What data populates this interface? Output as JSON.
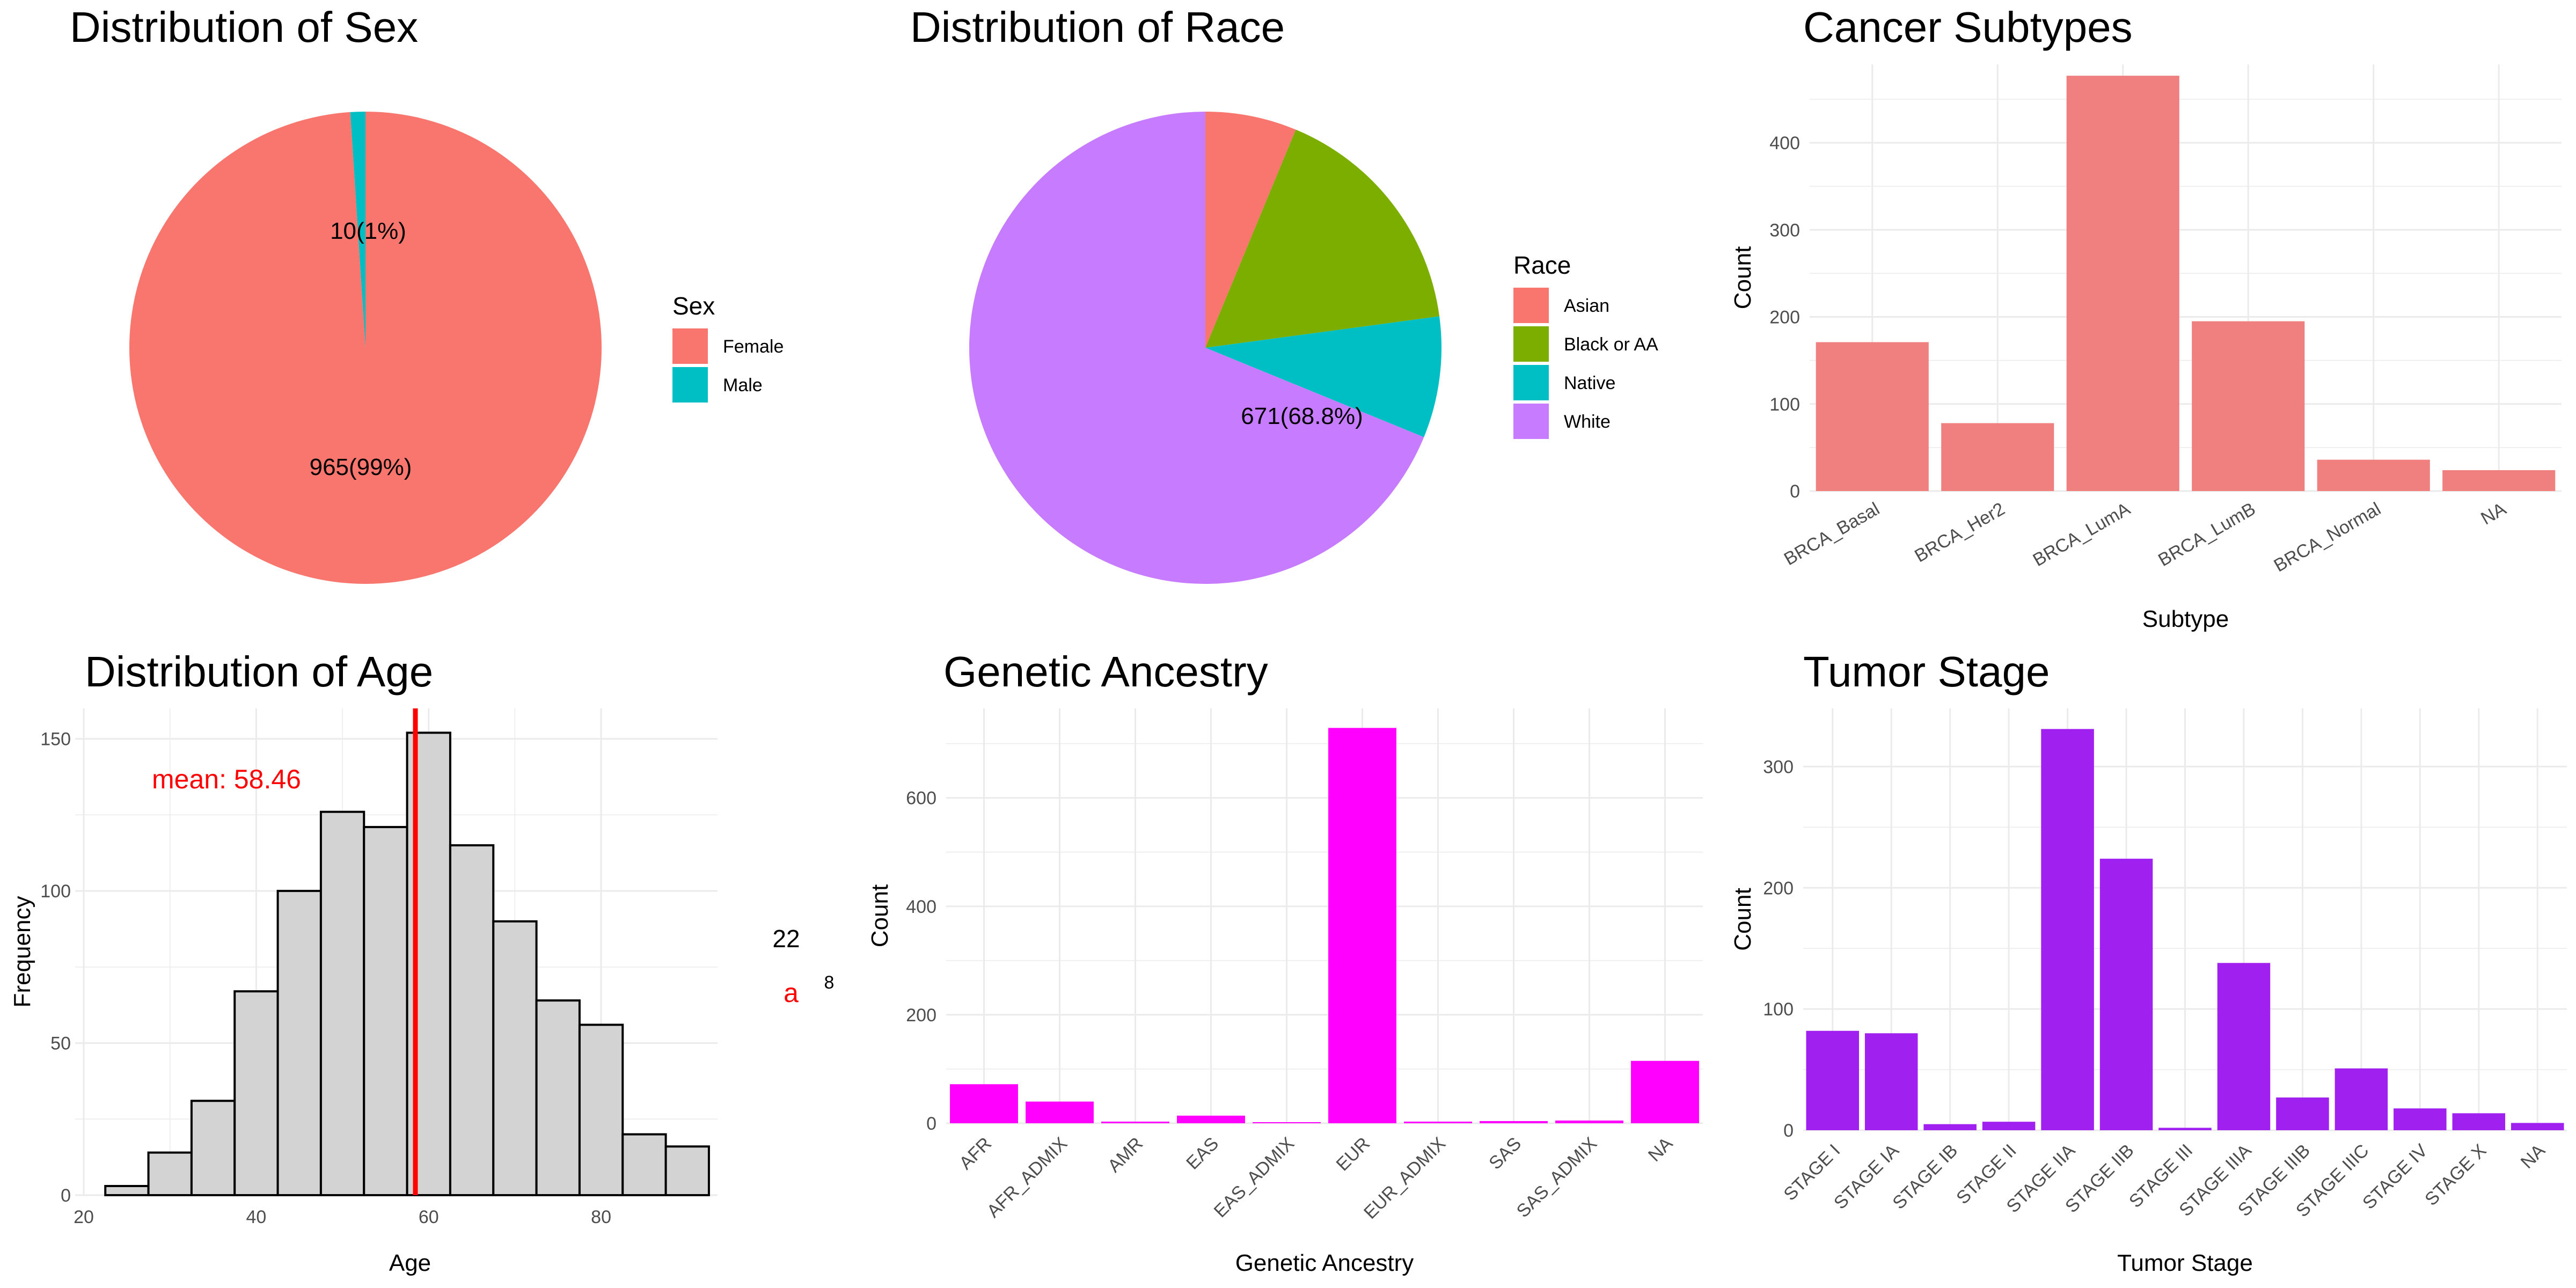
{
  "colors": {
    "female": "#F8766D",
    "male": "#00BFC4",
    "asian": "#F8766D",
    "black": "#7CAE00",
    "native": "#00BFC4",
    "white": "#C77CFF",
    "subtype_bar": "#F08080",
    "ancestry_bar": "#FF00FF",
    "stage_bar": "#A020F0",
    "hist_fill": "#D3D3D3",
    "mean_line": "#FF0000",
    "grid": "#EBEBEB",
    "tick_text": "#4D4D4D"
  },
  "chart_data": [
    {
      "id": "sex",
      "type": "pie",
      "title": "Distribution of Sex",
      "legend_title": "Sex",
      "legend_position": "right",
      "slices": [
        {
          "name": "Female",
          "value": 965,
          "label": "965(99%)"
        },
        {
          "name": "Male",
          "value": 10,
          "label": "10(1%)"
        }
      ]
    },
    {
      "id": "race",
      "type": "pie",
      "title": "Distribution of Race",
      "legend_title": "Race",
      "legend_position": "right",
      "slices": [
        {
          "name": "Asian",
          "value": 61,
          "label": ""
        },
        {
          "name": "Black or AA",
          "value": 162,
          "label": ""
        },
        {
          "name": "Native",
          "value": 81,
          "label": ""
        },
        {
          "name": "White",
          "value": 671,
          "label": "671(68.8%)"
        }
      ]
    },
    {
      "id": "subtype",
      "type": "bar",
      "title": "Cancer Subtypes",
      "xlabel": "Subtype",
      "ylabel": "Count",
      "categories": [
        "BRCA_Basal",
        "BRCA_Her2",
        "BRCA_LumA",
        "BRCA_LumB",
        "BRCA_Normal",
        "NA"
      ],
      "values": [
        171,
        78,
        477,
        195,
        36,
        24
      ],
      "ylim": [
        0,
        490
      ],
      "yticks": [
        0,
        100,
        200,
        300,
        400
      ],
      "grid": true
    },
    {
      "id": "age",
      "type": "histogram",
      "title": "Distribution of Age",
      "xlabel": "Age",
      "ylabel": "Frequency",
      "bin_edges": [
        22.5,
        27.5,
        32.5,
        37.5,
        42.5,
        47.5,
        52.5,
        57.5,
        62.5,
        67.5,
        72.5,
        77.5,
        82.5,
        87.5,
        92.5
      ],
      "values": [
        3,
        14,
        31,
        67,
        100,
        126,
        121,
        152,
        115,
        90,
        64,
        56,
        20,
        16
      ],
      "xlim": [
        19,
        93.5
      ],
      "ylim": [
        0,
        160
      ],
      "xticks": [
        20,
        40,
        60,
        80
      ],
      "yticks": [
        0,
        50,
        100,
        150
      ],
      "mean": 58.46,
      "mean_label": "mean:  58.46",
      "grid": true
    },
    {
      "id": "ancestry",
      "type": "bar",
      "title": "Genetic Ancestry",
      "xlabel": "Genetic Ancestry",
      "ylabel": "Count",
      "categories": [
        "AFR",
        "AFR_ADMIX",
        "AMR",
        "EAS",
        "EAS_ADMIX",
        "EUR",
        "EUR_ADMIX",
        "SAS",
        "SAS_ADMIX",
        "NA"
      ],
      "values": [
        72,
        40,
        3,
        14,
        2,
        729,
        3,
        4,
        5,
        115
      ],
      "ylim": [
        0,
        765
      ],
      "yticks": [
        0,
        200,
        400,
        600
      ],
      "grid": true
    },
    {
      "id": "stage",
      "type": "bar",
      "title": "Tumor Stage",
      "xlabel": "Tumor Stage",
      "ylabel": "Count",
      "categories": [
        "STAGE I",
        "STAGE IA",
        "STAGE IB",
        "STAGE II",
        "STAGE IIA",
        "STAGE IIB",
        "STAGE III",
        "STAGE IIIA",
        "STAGE IIIB",
        "STAGE IIIC",
        "STAGE IV",
        "STAGE X",
        "NA"
      ],
      "values": [
        82,
        80,
        5,
        7,
        331,
        224,
        2,
        138,
        27,
        51,
        18,
        14,
        6
      ],
      "ylim": [
        0,
        348
      ],
      "yticks": [
        0,
        100,
        200,
        300
      ],
      "grid": true
    }
  ],
  "stray_labels": {
    "count": "22",
    "mark": "a",
    "superscript": "8"
  }
}
